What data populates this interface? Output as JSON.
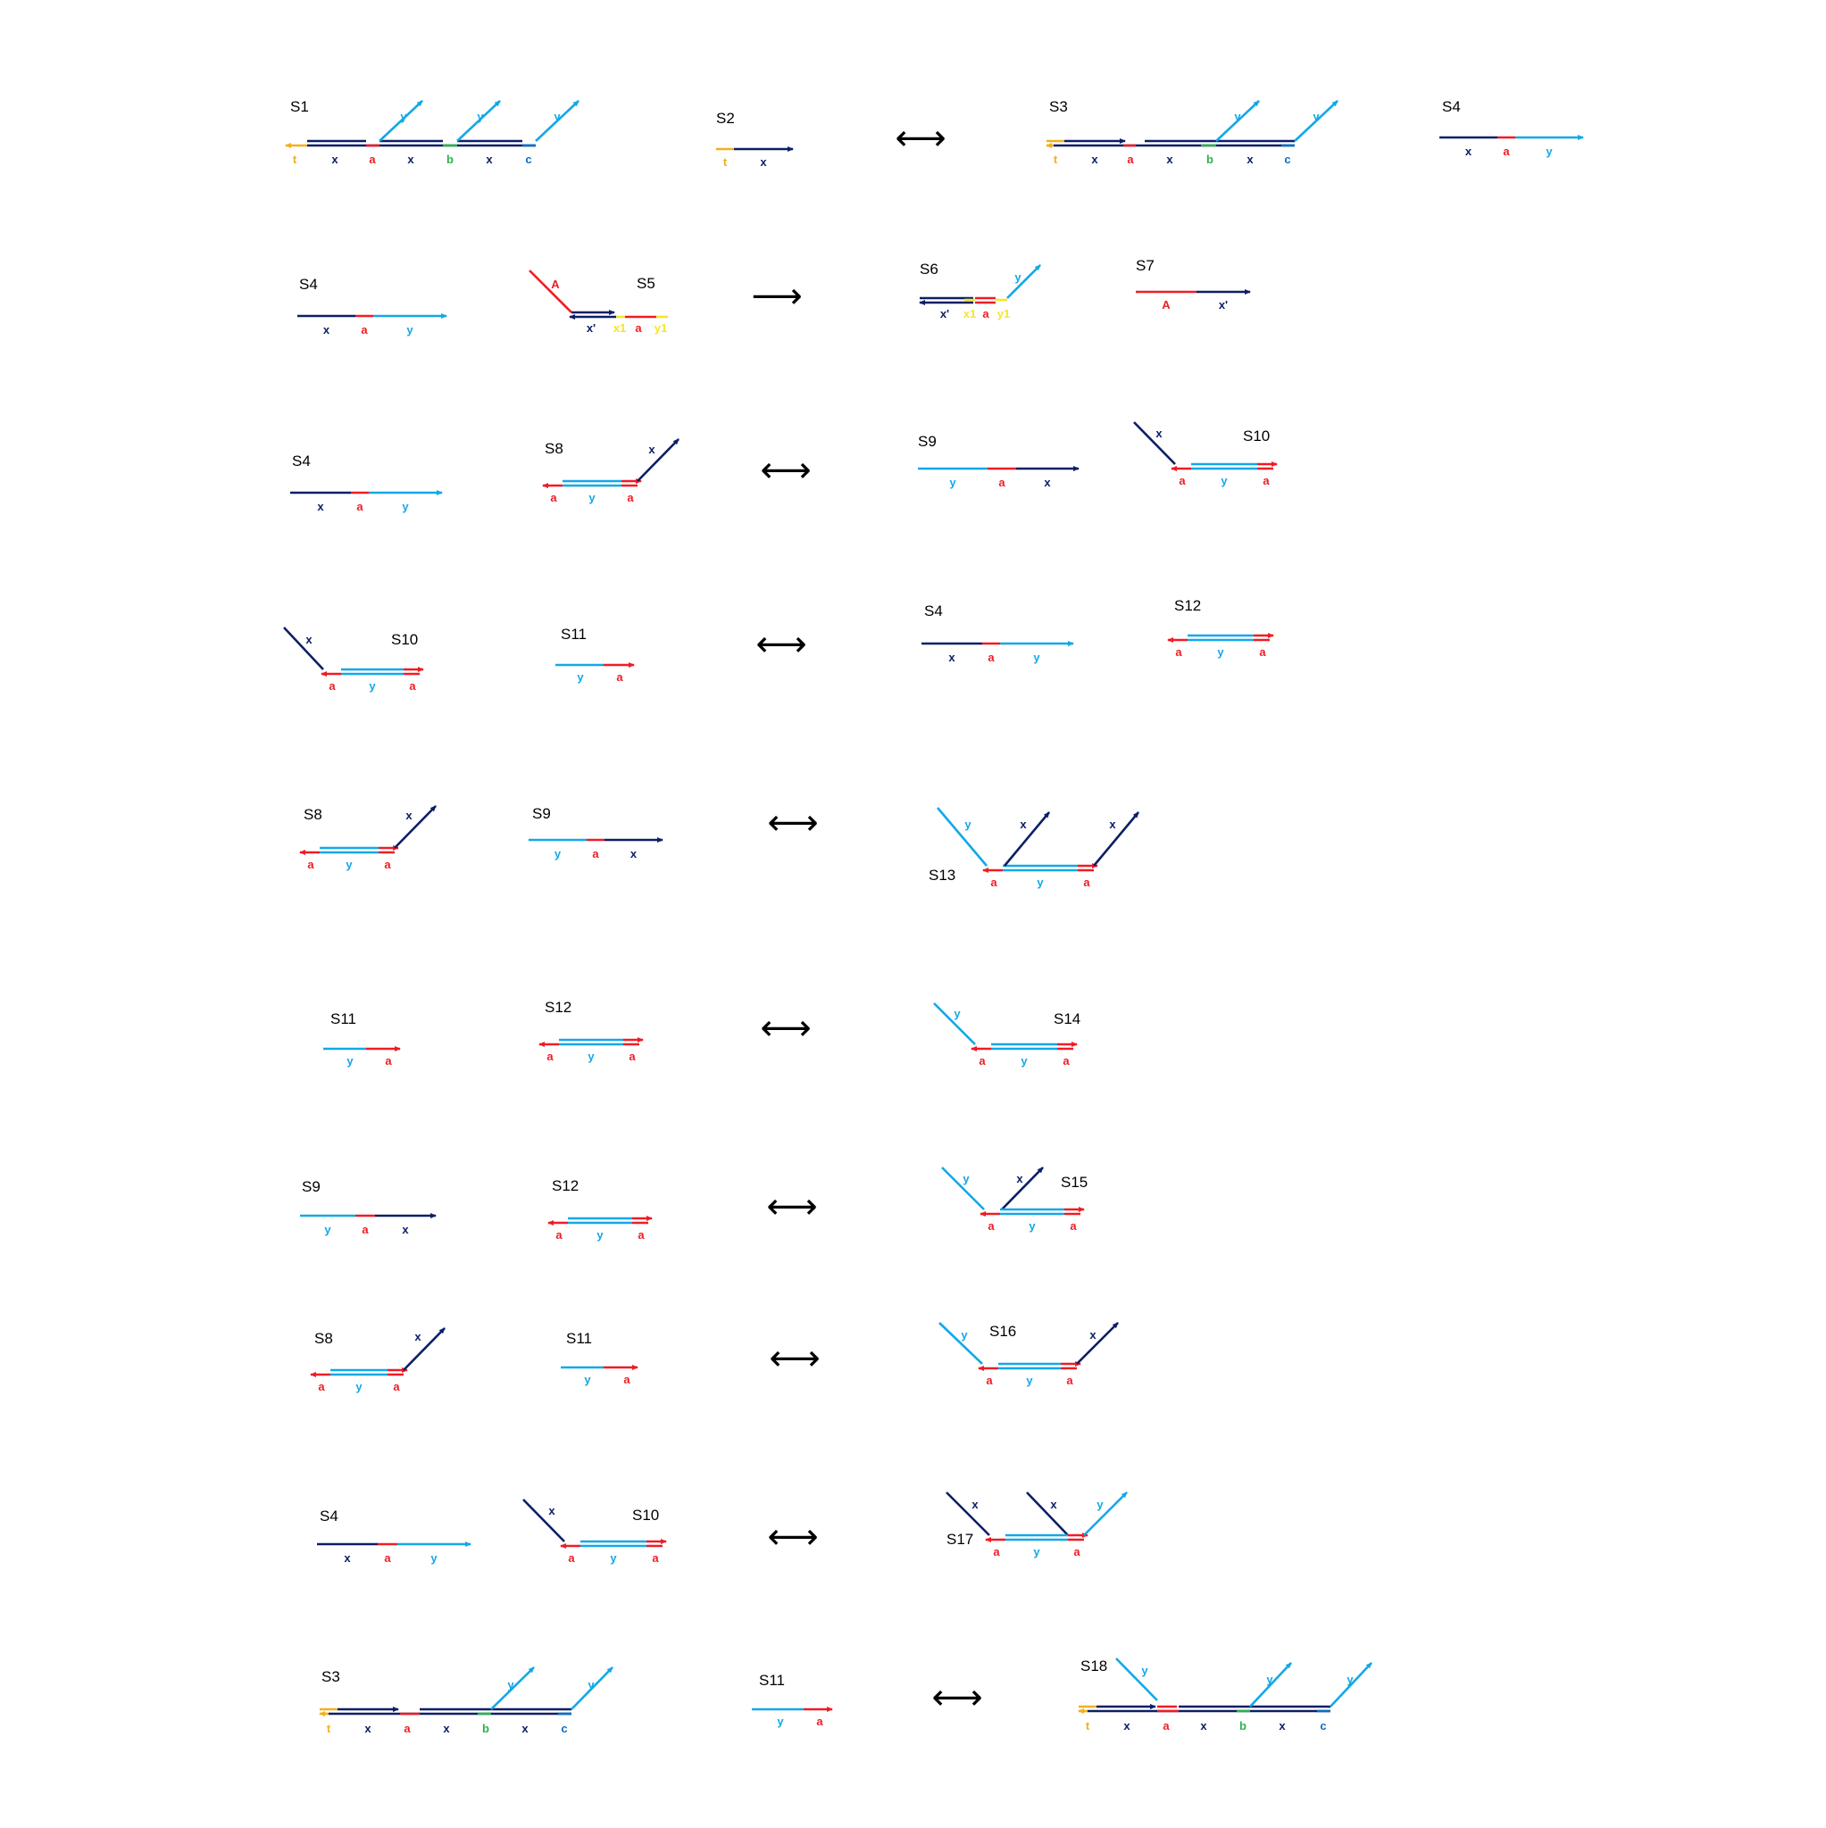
{
  "colors": {
    "x": "#0b1f66",
    "a": "#ef1c24",
    "y": "#12a8e8",
    "t": "#f2b01e",
    "b": "#2bb24c",
    "c": "#0b6fc4",
    "x1": "#f5e52a",
    "y1": "#f5e52a",
    "A": "#ef1c24",
    "x'": "#0b1f66"
  },
  "operators": {
    "reversible": "⟷",
    "forward": "⟶"
  },
  "reactions": [
    {
      "reactants": [
        "S1",
        "S2"
      ],
      "operator": "reversible",
      "products": [
        "S3",
        "S4"
      ]
    },
    {
      "reactants": [
        "S4",
        "S5"
      ],
      "operator": "forward",
      "products": [
        "S6",
        "S7"
      ]
    },
    {
      "reactants": [
        "S4",
        "S8"
      ],
      "operator": "reversible",
      "products": [
        "S9",
        "S10"
      ]
    },
    {
      "reactants": [
        "S10",
        "S11"
      ],
      "operator": "reversible",
      "products": [
        "S4",
        "S12"
      ]
    },
    {
      "reactants": [
        "S8",
        "S9"
      ],
      "operator": "reversible",
      "products": [
        "S13"
      ]
    },
    {
      "reactants": [
        "S11",
        "S12"
      ],
      "operator": "reversible",
      "products": [
        "S14"
      ]
    },
    {
      "reactants": [
        "S9",
        "S12"
      ],
      "operator": "reversible",
      "products": [
        "S15"
      ]
    },
    {
      "reactants": [
        "S8",
        "S11"
      ],
      "operator": "reversible",
      "products": [
        "S16"
      ]
    },
    {
      "reactants": [
        "S4",
        "S10"
      ],
      "operator": "reversible",
      "products": [
        "S17"
      ]
    },
    {
      "reactants": [
        "S3",
        "S11"
      ],
      "operator": "reversible",
      "products": [
        "S18"
      ]
    }
  ],
  "species_labels": {
    "S1": "S1",
    "S2": "S2",
    "S3": "S3",
    "S4": "S4",
    "S5": "S5",
    "S6": "S6",
    "S7": "S7",
    "S8": "S8",
    "S9": "S9",
    "S10": "S10",
    "S11": "S11",
    "S12": "S12",
    "S13": "S13",
    "S14": "S14",
    "S15": "S15",
    "S16": "S16",
    "S17": "S17",
    "S18": "S18"
  },
  "domain_labels": {
    "x": "x",
    "a": "a",
    "y": "y",
    "t": "t",
    "b": "b",
    "c": "c",
    "A": "A",
    "x1": "x1",
    "y1": "y1",
    "x_prime": "x'"
  },
  "strand_sequences": {
    "S1": [
      "t",
      "x",
      "a",
      "x",
      "b",
      "x",
      "c"
    ],
    "S2": [
      "t",
      "x"
    ],
    "S3": [
      "t",
      "x",
      "a",
      "x",
      "b",
      "x",
      "c"
    ],
    "S4": [
      "x",
      "a",
      "y"
    ],
    "S5": [
      "x'",
      "x1",
      "a",
      "y1"
    ],
    "S6": [
      "x'",
      "x1",
      "a",
      "y1"
    ],
    "S7": [
      "A",
      "x'"
    ],
    "S8": [
      "a",
      "y",
      "a"
    ],
    "S9": [
      "y",
      "a",
      "x"
    ],
    "S10": [
      "a",
      "y",
      "a"
    ],
    "S11": [
      "y",
      "a"
    ],
    "S12": [
      "a",
      "y",
      "a"
    ],
    "S13": [
      "a",
      "y",
      "a"
    ],
    "S14": [
      "a",
      "y",
      "a"
    ],
    "S15": [
      "a",
      "y",
      "a"
    ],
    "S16": [
      "a",
      "y",
      "a"
    ],
    "S17": [
      "a",
      "y",
      "a"
    ],
    "S18": [
      "t",
      "x",
      "a",
      "x",
      "b",
      "x",
      "c"
    ]
  }
}
